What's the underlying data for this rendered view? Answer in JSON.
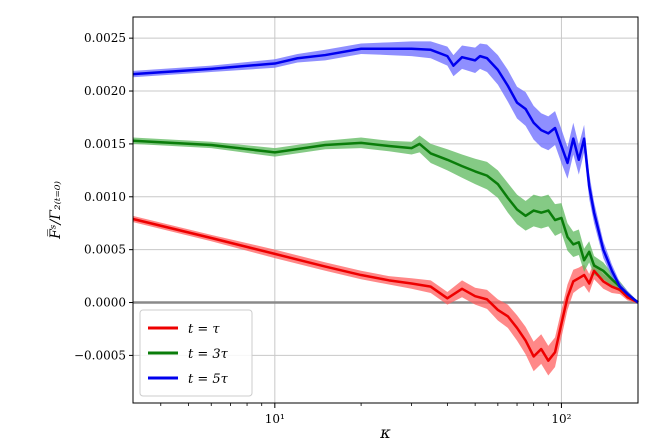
{
  "chart_data": {
    "type": "line",
    "xlabel": "κ",
    "ylabel": "F̅ˢ/Γ̅₂₍ₜ₌₀₎",
    "xscale": "log",
    "xlim": [
      3.2,
      185
    ],
    "ylim": [
      -0.00095,
      0.0027
    ],
    "grid": true,
    "legend_position": "lower-left",
    "x_ticks": [
      {
        "value": 10,
        "label": "10¹"
      },
      {
        "value": 100,
        "label": "10²"
      }
    ],
    "y_ticks": [
      {
        "value": -0.0005,
        "label": "−0.0005"
      },
      {
        "value": 0.0,
        "label": "0.0000"
      },
      {
        "value": 0.0005,
        "label": "0.0005"
      },
      {
        "value": 0.001,
        "label": "0.0010"
      },
      {
        "value": 0.0015,
        "label": "0.0015"
      },
      {
        "value": 0.002,
        "label": "0.0020"
      },
      {
        "value": 0.0025,
        "label": "0.0025"
      }
    ],
    "reference_line": {
      "y": 0.0,
      "color": "#8a8a8a"
    },
    "series": [
      {
        "name": "t = τ",
        "color": "#ee0000",
        "band_color": "#ff6060",
        "x": [
          3.2,
          6,
          10,
          15,
          20,
          25,
          30,
          35,
          40,
          45,
          50,
          55,
          60,
          65,
          70,
          75,
          80,
          85,
          90,
          95,
          100,
          105,
          110,
          115,
          120,
          125,
          130,
          140,
          150,
          160,
          170,
          185
        ],
        "y": [
          0.00079,
          0.00061,
          0.00046,
          0.00034,
          0.00026,
          0.00021,
          0.00018,
          0.00015,
          4e-05,
          0.00013,
          6e-05,
          3e-05,
          -7e-05,
          -0.00013,
          -0.00024,
          -0.00036,
          -0.00051,
          -0.00044,
          -0.00055,
          -0.00047,
          -0.0002,
          5e-05,
          0.0002,
          0.00023,
          0.00026,
          0.00018,
          0.0003,
          0.0002,
          0.00015,
          0.00012,
          5e-05,
          0.0
        ],
        "err": [
          3e-05,
          3e-05,
          4e-05,
          4e-05,
          4e-05,
          4e-05,
          5e-05,
          6e-05,
          6e-05,
          8e-05,
          8e-05,
          9e-05,
          0.0001,
          0.00011,
          0.00012,
          0.00013,
          0.00014,
          0.00014,
          0.00014,
          0.00014,
          0.00013,
          0.00012,
          0.00011,
          0.0001,
          0.0001,
          9e-05,
          8e-05,
          7e-05,
          6e-05,
          4e-05,
          3e-05,
          1e-05
        ]
      },
      {
        "name": "t = 3τ",
        "color": "#0a7d0a",
        "band_color": "#5cb85c",
        "x": [
          3.2,
          6,
          10,
          15,
          20,
          25,
          30,
          32,
          35,
          40,
          45,
          50,
          55,
          60,
          65,
          70,
          75,
          80,
          85,
          90,
          95,
          100,
          105,
          110,
          115,
          120,
          125,
          130,
          140,
          150,
          160,
          170,
          185
        ],
        "y": [
          0.00153,
          0.00149,
          0.00142,
          0.00149,
          0.00151,
          0.00148,
          0.00146,
          0.0015,
          0.00141,
          0.00135,
          0.00129,
          0.00124,
          0.0012,
          0.00112,
          0.00099,
          0.00088,
          0.00082,
          0.00087,
          0.00085,
          0.00087,
          0.00078,
          0.0008,
          0.00062,
          0.00055,
          0.00057,
          0.0004,
          0.00048,
          0.00035,
          0.0003,
          0.00022,
          0.00015,
          8e-05,
          0.0
        ],
        "err": [
          3e-05,
          3e-05,
          4e-05,
          4e-05,
          5e-05,
          5e-05,
          6e-05,
          8e-05,
          9e-05,
          0.0001,
          0.00011,
          0.00012,
          0.00013,
          0.00013,
          0.00014,
          0.00014,
          0.00014,
          0.00015,
          0.00015,
          0.00015,
          0.00015,
          0.00014,
          0.00013,
          0.00012,
          0.00012,
          0.00011,
          0.0001,
          9e-05,
          8e-05,
          6e-05,
          5e-05,
          3e-05,
          1e-05
        ]
      },
      {
        "name": "t = 5τ",
        "color": "#0000ee",
        "band_color": "#6a6aff",
        "x": [
          3.2,
          6,
          10,
          12,
          15,
          20,
          25,
          30,
          35,
          40,
          42,
          45,
          50,
          52,
          55,
          60,
          65,
          70,
          75,
          80,
          85,
          90,
          95,
          100,
          105,
          110,
          115,
          120,
          125,
          130,
          140,
          150,
          160,
          170,
          185
        ],
        "y": [
          0.00216,
          0.00221,
          0.00226,
          0.00231,
          0.00234,
          0.0024,
          0.0024,
          0.0024,
          0.00239,
          0.00233,
          0.00224,
          0.00232,
          0.00229,
          0.00233,
          0.00231,
          0.0022,
          0.00205,
          0.00189,
          0.00183,
          0.0017,
          0.00163,
          0.0016,
          0.00165,
          0.00148,
          0.00132,
          0.00155,
          0.00135,
          0.00155,
          0.0011,
          0.00085,
          0.0005,
          0.0003,
          0.00015,
          8e-05,
          0.0
        ],
        "err": [
          3e-05,
          3e-05,
          4e-05,
          4e-05,
          5e-05,
          5e-05,
          6e-05,
          7e-05,
          8e-05,
          9e-05,
          0.0001,
          0.00011,
          0.00012,
          0.00012,
          0.00013,
          0.00014,
          0.00015,
          0.00015,
          0.00016,
          0.00016,
          0.00016,
          0.00016,
          0.00016,
          0.00016,
          0.00015,
          0.00015,
          0.00014,
          0.00013,
          0.00012,
          0.0001,
          8e-05,
          6e-05,
          4e-05,
          3e-05,
          1e-05
        ]
      }
    ]
  }
}
